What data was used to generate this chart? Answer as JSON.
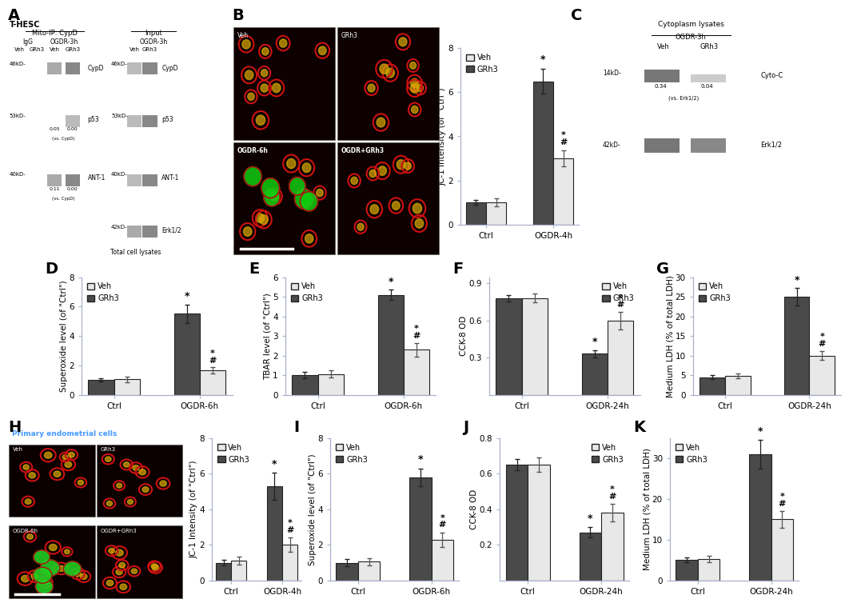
{
  "panel_B": {
    "ylabel": "JC-1 Intensity (of \"Ctrl\")",
    "xlabel_groups": [
      "Ctrl",
      "OGDR-4h"
    ],
    "grh3_values": [
      1.0,
      6.5
    ],
    "veh_values": [
      1.0,
      3.0
    ],
    "grh3_err": [
      0.12,
      0.55
    ],
    "veh_err": [
      0.18,
      0.35
    ],
    "ylim": [
      0,
      8
    ],
    "yticks": [
      0,
      2,
      4,
      6,
      8
    ],
    "ogdr_grh3_ann": "*",
    "ogdr_veh_ann": "*#"
  },
  "panel_D": {
    "ylabel": "Superoxide level (of \"Ctrl\")",
    "xlabel_groups": [
      "Ctrl",
      "OGDR-6h"
    ],
    "grh3_values": [
      1.0,
      5.5
    ],
    "veh_values": [
      1.05,
      1.65
    ],
    "grh3_err": [
      0.12,
      0.65
    ],
    "veh_err": [
      0.18,
      0.22
    ],
    "ylim": [
      0,
      8
    ],
    "yticks": [
      0,
      2,
      4,
      6,
      8
    ],
    "ogdr_grh3_ann": "*",
    "ogdr_veh_ann": "*#"
  },
  "panel_E": {
    "ylabel": "TBAR level (of \"Ctrl\")",
    "xlabel_groups": [
      "Ctrl",
      "OGDR-6h"
    ],
    "grh3_values": [
      1.0,
      5.1
    ],
    "veh_values": [
      1.05,
      2.3
    ],
    "grh3_err": [
      0.18,
      0.25
    ],
    "veh_err": [
      0.18,
      0.35
    ],
    "ylim": [
      0,
      6
    ],
    "yticks": [
      0,
      1,
      2,
      3,
      4,
      5,
      6
    ],
    "ogdr_grh3_ann": "*",
    "ogdr_veh_ann": "*#"
  },
  "panel_F": {
    "ylabel": "CCK-8 OD",
    "xlabel_groups": [
      "Ctrl",
      "OGDR-24h"
    ],
    "grh3_values": [
      0.78,
      0.33
    ],
    "veh_values": [
      0.78,
      0.6
    ],
    "grh3_err": [
      0.025,
      0.03
    ],
    "veh_err": [
      0.035,
      0.07
    ],
    "ylim": [
      0,
      0.95
    ],
    "yticks": [
      0.3,
      0.6,
      0.9
    ],
    "ogdr_grh3_ann": "*",
    "ogdr_veh_ann": "*#"
  },
  "panel_G": {
    "ylabel": "Medium LDH (% of total LDH)",
    "xlabel_groups": [
      "Ctrl",
      "OGDR-24h"
    ],
    "grh3_values": [
      4.5,
      25.0
    ],
    "veh_values": [
      4.8,
      10.0
    ],
    "grh3_err": [
      0.5,
      2.2
    ],
    "veh_err": [
      0.7,
      1.2
    ],
    "ylim": [
      0,
      30
    ],
    "yticks": [
      0,
      5,
      10,
      15,
      20,
      25,
      30
    ],
    "ogdr_grh3_ann": "*",
    "ogdr_veh_ann": "#*"
  },
  "panel_H_bar": {
    "ylabel": "JC-1 Intensity (of \"Ctrl\")",
    "xlabel_groups": [
      "Ctrl",
      "OGDR-4h"
    ],
    "grh3_values": [
      1.0,
      5.3
    ],
    "veh_values": [
      1.1,
      2.0
    ],
    "grh3_err": [
      0.15,
      0.75
    ],
    "veh_err": [
      0.22,
      0.4
    ],
    "ylim": [
      0,
      8
    ],
    "yticks": [
      0,
      2,
      4,
      6,
      8
    ],
    "ogdr_grh3_ann": "*",
    "ogdr_veh_ann": "*#"
  },
  "panel_I": {
    "ylabel": "Superoxide level (of \"Ctrl\")",
    "xlabel_groups": [
      "Ctrl",
      "OGDR-6h"
    ],
    "grh3_values": [
      1.0,
      5.8
    ],
    "veh_values": [
      1.05,
      2.3
    ],
    "grh3_err": [
      0.2,
      0.5
    ],
    "veh_err": [
      0.2,
      0.4
    ],
    "ylim": [
      0,
      8
    ],
    "yticks": [
      0,
      2,
      4,
      6,
      8
    ],
    "ogdr_grh3_ann": "*",
    "ogdr_veh_ann": "*#"
  },
  "panel_J": {
    "ylabel": "CCK-8 OD",
    "xlabel_groups": [
      "Ctrl",
      "OGDR-24h"
    ],
    "grh3_values": [
      0.65,
      0.27
    ],
    "veh_values": [
      0.65,
      0.38
    ],
    "grh3_err": [
      0.03,
      0.03
    ],
    "veh_err": [
      0.04,
      0.05
    ],
    "ylim": [
      0,
      0.8
    ],
    "yticks": [
      0.2,
      0.4,
      0.6,
      0.8
    ],
    "ogdr_grh3_ann": "*",
    "ogdr_veh_ann": "*#"
  },
  "panel_K": {
    "ylabel": "Medium LDH (% of total LDH)",
    "xlabel_groups": [
      "Ctrl",
      "OGDR-24h"
    ],
    "grh3_values": [
      5.0,
      31.0
    ],
    "veh_values": [
      5.2,
      15.0
    ],
    "grh3_err": [
      0.6,
      3.5
    ],
    "veh_err": [
      0.8,
      2.0
    ],
    "ylim": [
      0,
      35
    ],
    "yticks": [
      0,
      10,
      20,
      30
    ],
    "ogdr_grh3_ann": "*",
    "ogdr_veh_ann": "*#"
  },
  "colors": {
    "veh_bar": "#e8e8e8",
    "grh3_bar": "#4a4a4a",
    "edge": "#222222",
    "err_dark": "#222222",
    "err_light": "#555555",
    "bg": "#ffffff",
    "axis_spine": "#aab0cc"
  },
  "bar_width": 0.3,
  "lfs": 7.5,
  "tfs": 7.5,
  "ann_fs": 9,
  "panel_label_fs": 14
}
